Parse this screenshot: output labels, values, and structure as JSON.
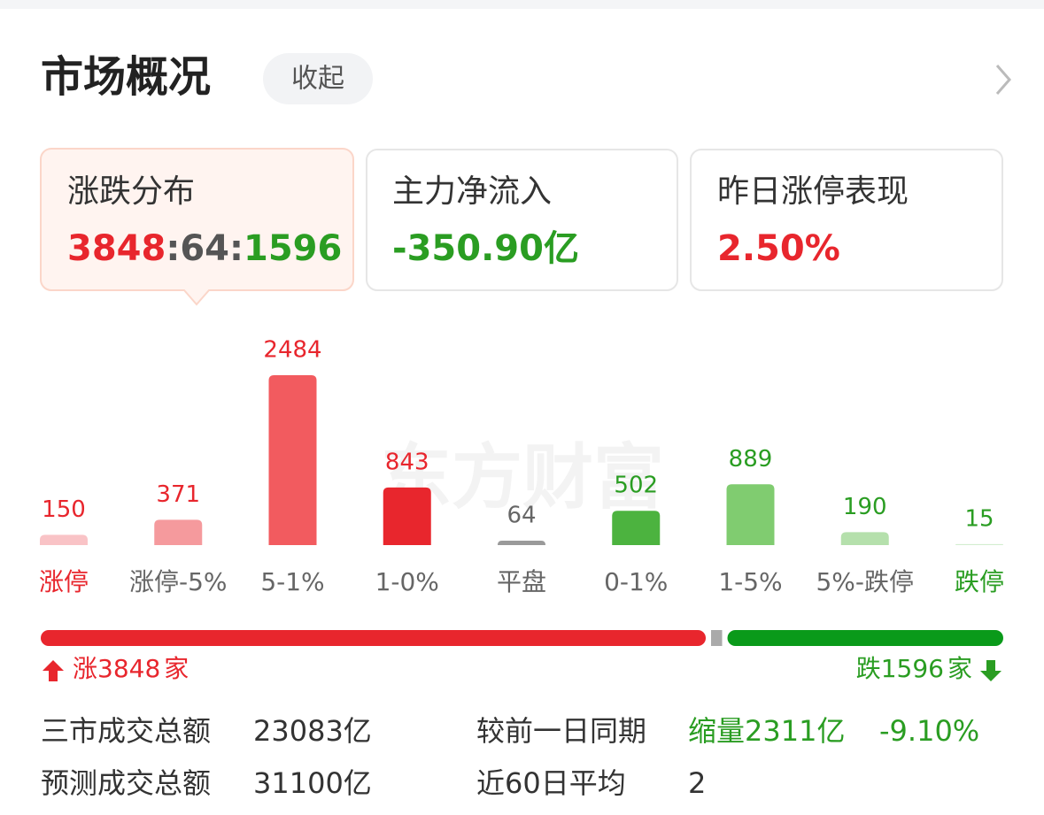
{
  "header": {
    "title": "市场概况",
    "toggle": "收起"
  },
  "distribution": {
    "title": "涨跌分布",
    "up": 3848,
    "flat": 64,
    "down": 1596,
    "separator": ":"
  },
  "cards": [
    {
      "title": "主力净流入",
      "value": "-350.90亿"
    },
    {
      "title": "昨日涨停表现",
      "value": "2.50%"
    }
  ],
  "watermark": "东方财富",
  "chart_data": {
    "type": "bar",
    "categories": [
      "涨停",
      "涨停-5%",
      "5-1%",
      "1-0%",
      "平盘",
      "0-1%",
      "1-5%",
      "5%-跌停",
      "跌停"
    ],
    "values": [
      150,
      371,
      2484,
      843,
      64,
      502,
      889,
      190,
      15
    ],
    "colors": [
      "#f9c3c6",
      "#f59a9d",
      "#f25b5f",
      "#e8262d",
      "#9a9a9a",
      "#4cb33f",
      "#80cc70",
      "#b5e0ac",
      "#d3eecf"
    ],
    "value_colors": [
      "#e8262d",
      "#e8262d",
      "#e8262d",
      "#e8262d",
      "#666666",
      "#2a9d22",
      "#2a9d22",
      "#2a9d22",
      "#2a9d22"
    ],
    "category_colors": [
      "#e8262d",
      "#666666",
      "#666666",
      "#666666",
      "#666666",
      "#666666",
      "#666666",
      "#666666",
      "#2a9d22"
    ]
  },
  "ratio": {
    "up_prefix": "涨",
    "down_prefix": "跌",
    "unit": "家"
  },
  "stats": [
    {
      "label": "三市成交总额",
      "value": "23083亿"
    },
    {
      "label": "较前一日同期",
      "value": "缩量2311亿",
      "change": "-9.10%"
    },
    {
      "label": "预测成交总额",
      "value": "31100亿"
    },
    {
      "label": "近60日平均",
      "value": "2"
    }
  ]
}
